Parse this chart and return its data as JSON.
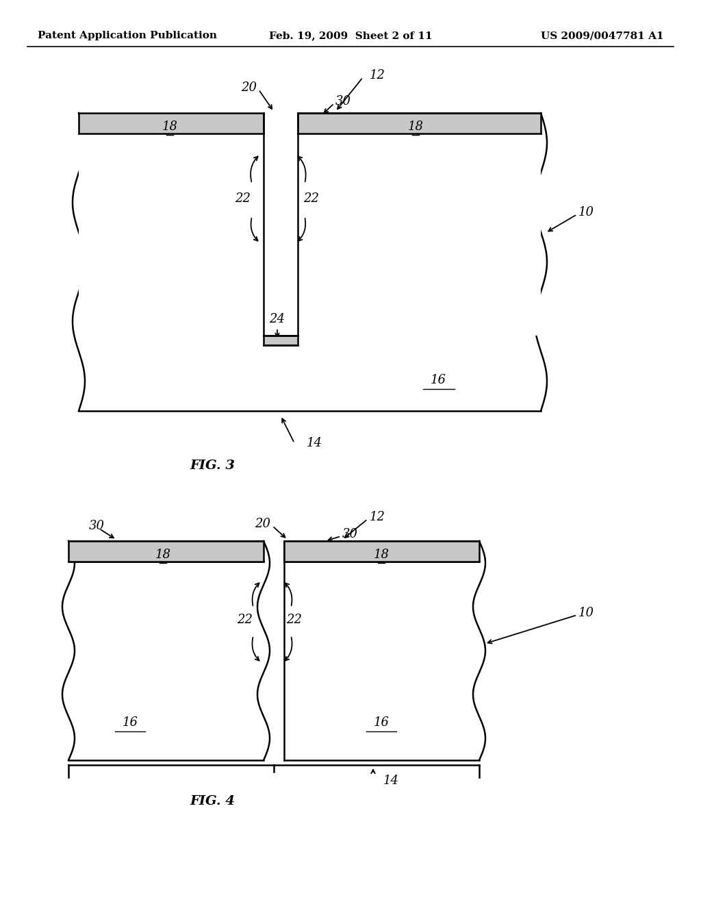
{
  "bg_color": "#ffffff",
  "header_left": "Patent Application Publication",
  "header_mid": "Feb. 19, 2009  Sheet 2 of 11",
  "header_right": "US 2009/0047781 A1"
}
